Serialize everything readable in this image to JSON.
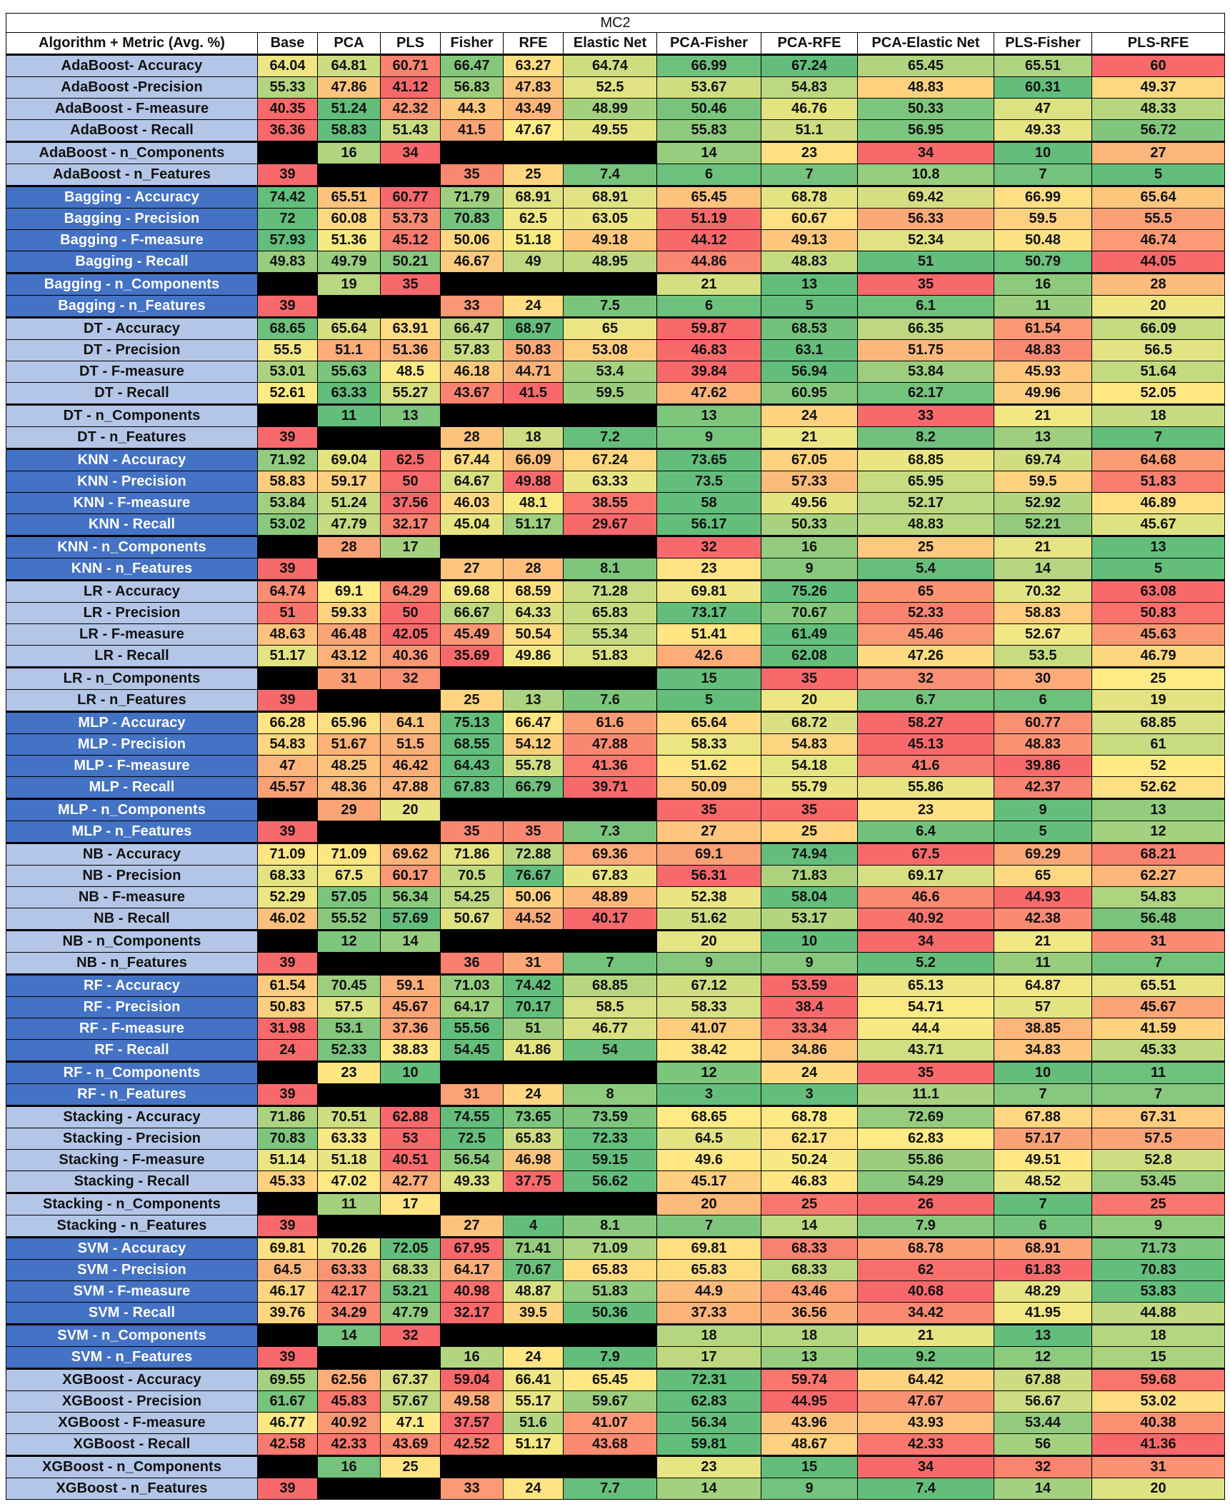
{
  "chart_data": {
    "type": "table",
    "title": "MC2",
    "corner_header": "Algorithm + Metric (Avg. %)",
    "columns": [
      "Base",
      "PCA",
      "PLS",
      "Fisher",
      "RFE",
      "Elastic Net",
      "PCA-Fisher",
      "PCA-RFE",
      "PCA-Elastic Net",
      "PLS-Fisher",
      "PLS-RFE"
    ],
    "colors": {
      "red": "#f8696b",
      "yellow": "#ffeb84",
      "green": "#63be7b",
      "empty": "#000000",
      "label_light": "#b4c6e7",
      "label_dark": "#4472c4"
    },
    "rows": [
      {
        "label": "AdaBoost- Accuracy",
        "values": [
          64.04,
          64.81,
          60.71,
          66.47,
          63.27,
          64.74,
          66.99,
          67.24,
          65.45,
          65.51,
          60
        ]
      },
      {
        "label": "AdaBoost -Precision",
        "values": [
          55.33,
          47.86,
          41.12,
          56.83,
          47.83,
          52.5,
          53.67,
          54.83,
          48.83,
          60.31,
          49.37
        ]
      },
      {
        "label": "AdaBoost - F-measure",
        "values": [
          40.35,
          51.24,
          42.32,
          44.3,
          43.49,
          48.99,
          50.46,
          46.76,
          50.33,
          47,
          48.33
        ]
      },
      {
        "label": "AdaBoost - Recall",
        "values": [
          36.36,
          58.83,
          51.43,
          41.5,
          47.67,
          49.55,
          55.83,
          51.1,
          56.95,
          49.33,
          56.72
        ]
      },
      {
        "label": "AdaBoost - n_Components",
        "values": [
          null,
          16,
          34,
          null,
          null,
          null,
          14,
          23,
          34,
          10,
          27
        ]
      },
      {
        "label": "AdaBoost - n_Features",
        "values": [
          39,
          null,
          null,
          35,
          25,
          7.4,
          6,
          7,
          10.8,
          7,
          5
        ]
      },
      {
        "label": "Bagging - Accuracy",
        "values": [
          74.42,
          65.51,
          60.77,
          71.79,
          68.91,
          68.91,
          65.45,
          68.78,
          69.42,
          66.99,
          65.64
        ]
      },
      {
        "label": "Bagging - Precision",
        "values": [
          72,
          60.08,
          53.73,
          70.83,
          62.5,
          63.05,
          51.19,
          60.67,
          56.33,
          59.5,
          55.5
        ]
      },
      {
        "label": "Bagging - F-measure",
        "values": [
          57.93,
          51.36,
          45.12,
          50.06,
          51.18,
          49.18,
          44.12,
          49.13,
          52.34,
          50.48,
          46.74
        ]
      },
      {
        "label": "Bagging - Recall",
        "values": [
          49.83,
          49.79,
          50.21,
          46.67,
          49,
          48.95,
          44.86,
          48.83,
          51,
          50.79,
          44.05
        ]
      },
      {
        "label": "Bagging - n_Components",
        "values": [
          null,
          19,
          35,
          null,
          null,
          null,
          21,
          13,
          35,
          16,
          28
        ]
      },
      {
        "label": "Bagging - n_Features",
        "values": [
          39,
          null,
          null,
          33,
          24,
          7.5,
          6,
          5,
          6.1,
          11,
          20
        ]
      },
      {
        "label": "DT - Accuracy",
        "values": [
          68.65,
          65.64,
          63.91,
          66.47,
          68.97,
          65,
          59.87,
          68.53,
          66.35,
          61.54,
          66.09
        ]
      },
      {
        "label": "DT - Precision",
        "values": [
          55.5,
          51.1,
          51.36,
          57.83,
          50.83,
          53.08,
          46.83,
          63.1,
          51.75,
          48.83,
          56.5
        ]
      },
      {
        "label": "DT - F-measure",
        "values": [
          53.01,
          55.63,
          48.5,
          46.18,
          44.71,
          53.4,
          39.84,
          56.94,
          53.84,
          45.93,
          51.64
        ]
      },
      {
        "label": "DT - Recall",
        "values": [
          52.61,
          63.33,
          55.27,
          43.67,
          41.5,
          59.5,
          47.62,
          60.95,
          62.17,
          49.96,
          52.05
        ]
      },
      {
        "label": "DT - n_Components",
        "values": [
          null,
          11,
          13,
          null,
          null,
          null,
          13,
          24,
          33,
          21,
          18
        ]
      },
      {
        "label": "DT - n_Features",
        "values": [
          39,
          null,
          null,
          28,
          18,
          7.2,
          9,
          21,
          8.2,
          13,
          7
        ]
      },
      {
        "label": "KNN - Accuracy",
        "values": [
          71.92,
          69.04,
          62.5,
          67.44,
          66.09,
          67.24,
          73.65,
          67.05,
          68.85,
          69.74,
          64.68
        ]
      },
      {
        "label": "KNN - Precision",
        "values": [
          58.83,
          59.17,
          50,
          64.67,
          49.88,
          63.33,
          73.5,
          57.33,
          65.95,
          59.5,
          51.83
        ]
      },
      {
        "label": "KNN - F-measure",
        "values": [
          53.84,
          51.24,
          37.56,
          46.03,
          48.1,
          38.55,
          58,
          49.56,
          52.17,
          52.92,
          46.89
        ]
      },
      {
        "label": "KNN - Recall",
        "values": [
          53.02,
          47.79,
          32.17,
          45.04,
          51.17,
          29.67,
          56.17,
          50.33,
          48.83,
          52.21,
          45.67
        ]
      },
      {
        "label": "KNN - n_Components",
        "values": [
          null,
          28,
          17,
          null,
          null,
          null,
          32,
          16,
          25,
          21,
          13
        ]
      },
      {
        "label": "KNN - n_Features",
        "values": [
          39,
          null,
          null,
          27,
          28,
          8.1,
          23,
          9,
          5.4,
          14,
          5
        ]
      },
      {
        "label": "LR - Accuracy",
        "values": [
          64.74,
          69.1,
          64.29,
          69.68,
          68.59,
          71.28,
          69.81,
          75.26,
          65,
          70.32,
          63.08
        ]
      },
      {
        "label": "LR - Precision",
        "values": [
          51,
          59.33,
          50,
          66.67,
          64.33,
          65.83,
          73.17,
          70.67,
          52.33,
          58.83,
          50.83
        ]
      },
      {
        "label": "LR - F-measure",
        "values": [
          48.63,
          46.48,
          42.05,
          45.49,
          50.54,
          55.34,
          51.41,
          61.49,
          45.46,
          52.67,
          45.63
        ]
      },
      {
        "label": "LR - Recall",
        "values": [
          51.17,
          43.12,
          40.36,
          35.69,
          49.86,
          51.83,
          42.6,
          62.08,
          47.26,
          53.5,
          46.79
        ]
      },
      {
        "label": "LR - n_Components",
        "values": [
          null,
          31,
          32,
          null,
          null,
          null,
          15,
          35,
          32,
          30,
          25
        ]
      },
      {
        "label": "LR - n_Features",
        "values": [
          39,
          null,
          null,
          25,
          13,
          7.6,
          5,
          20,
          6.7,
          6,
          19
        ]
      },
      {
        "label": "MLP - Accuracy",
        "values": [
          66.28,
          65.96,
          64.1,
          75.13,
          66.47,
          61.6,
          65.64,
          68.72,
          58.27,
          60.77,
          68.85
        ]
      },
      {
        "label": "MLP -  Precision",
        "values": [
          54.83,
          51.67,
          51.5,
          68.55,
          54.12,
          47.88,
          58.33,
          54.83,
          45.13,
          48.83,
          61
        ]
      },
      {
        "label": "MLP -  F-measure",
        "values": [
          47,
          48.25,
          46.42,
          64.43,
          55.78,
          41.36,
          51.62,
          54.18,
          41.6,
          39.86,
          52
        ]
      },
      {
        "label": "MLP -  Recall",
        "values": [
          45.57,
          48.36,
          47.88,
          67.83,
          66.79,
          39.71,
          50.09,
          55.79,
          55.86,
          42.37,
          52.62
        ]
      },
      {
        "label": "MLP - n_Components",
        "values": [
          null,
          29,
          20,
          null,
          null,
          null,
          35,
          35,
          23,
          9,
          13
        ]
      },
      {
        "label": "MLP - n_Features",
        "values": [
          39,
          null,
          null,
          35,
          35,
          7.3,
          27,
          25,
          6.4,
          5,
          12
        ]
      },
      {
        "label": "NB - Accuracy",
        "values": [
          71.09,
          71.09,
          69.62,
          71.86,
          72.88,
          69.36,
          69.1,
          74.94,
          67.5,
          69.29,
          68.21
        ]
      },
      {
        "label": "NB - Precision",
        "values": [
          68.33,
          67.5,
          60.17,
          70.5,
          76.67,
          67.83,
          56.31,
          71.83,
          69.17,
          65,
          62.27
        ]
      },
      {
        "label": "NB - F-measure",
        "values": [
          52.29,
          57.05,
          56.34,
          54.25,
          50.06,
          48.89,
          52.38,
          58.04,
          46.6,
          44.93,
          54.83
        ]
      },
      {
        "label": "NB - Recall",
        "values": [
          46.02,
          55.52,
          57.69,
          50.67,
          44.52,
          40.17,
          51.62,
          53.17,
          40.92,
          42.38,
          56.48
        ]
      },
      {
        "label": "NB - n_Components",
        "values": [
          null,
          12,
          14,
          null,
          null,
          null,
          20,
          10,
          34,
          21,
          31
        ]
      },
      {
        "label": "NB - n_Features",
        "values": [
          39,
          null,
          null,
          36,
          31,
          7,
          9,
          9,
          5.2,
          11,
          7
        ]
      },
      {
        "label": "RF - Accuracy",
        "values": [
          61.54,
          70.45,
          59.1,
          71.03,
          74.42,
          68.85,
          67.12,
          53.59,
          65.13,
          64.87,
          65.51
        ]
      },
      {
        "label": "RF - Precision",
        "values": [
          50.83,
          57.5,
          45.67,
          64.17,
          70.17,
          58.5,
          58.33,
          38.4,
          54.71,
          57,
          45.67
        ]
      },
      {
        "label": "RF - F-measure",
        "values": [
          31.98,
          53.1,
          37.36,
          55.56,
          51,
          46.77,
          41.07,
          33.34,
          44.4,
          38.85,
          41.59
        ]
      },
      {
        "label": "RF - Recall",
        "values": [
          24,
          52.33,
          38.83,
          54.45,
          41.86,
          54,
          38.42,
          34.86,
          43.71,
          34.83,
          45.33
        ]
      },
      {
        "label": "RF - n_Components",
        "values": [
          null,
          23,
          10,
          null,
          null,
          null,
          12,
          24,
          35,
          10,
          11
        ]
      },
      {
        "label": "RF - n_Features",
        "values": [
          39,
          null,
          null,
          31,
          24,
          8,
          3,
          3,
          11.1,
          7,
          7
        ]
      },
      {
        "label": "Stacking - Accuracy",
        "values": [
          71.86,
          70.51,
          62.88,
          74.55,
          73.65,
          73.59,
          68.65,
          68.78,
          72.69,
          67.88,
          67.31
        ]
      },
      {
        "label": "Stacking - Precision",
        "values": [
          70.83,
          63.33,
          53,
          72.5,
          65.83,
          72.33,
          64.5,
          62.17,
          62.83,
          57.17,
          57.5
        ]
      },
      {
        "label": "Stacking - F-measure",
        "values": [
          51.14,
          51.18,
          40.51,
          56.54,
          46.98,
          59.15,
          49.6,
          50.24,
          55.86,
          49.51,
          52.8
        ]
      },
      {
        "label": "Stacking - Recall",
        "values": [
          45.33,
          47.02,
          42.77,
          49.33,
          37.75,
          56.62,
          45.17,
          46.83,
          54.29,
          48.52,
          53.45
        ]
      },
      {
        "label": "Stacking - n_Components",
        "values": [
          null,
          11,
          17,
          null,
          null,
          null,
          20,
          25,
          26,
          7,
          25
        ]
      },
      {
        "label": "Stacking - n_Features",
        "values": [
          39,
          null,
          null,
          27,
          4,
          8.1,
          7,
          14,
          7.9,
          6,
          9
        ]
      },
      {
        "label": "SVM - Accuracy",
        "values": [
          69.81,
          70.26,
          72.05,
          67.95,
          71.41,
          71.09,
          69.81,
          68.33,
          68.78,
          68.91,
          71.73
        ]
      },
      {
        "label": "SVM - Precision",
        "values": [
          64.5,
          63.33,
          68.33,
          64.17,
          70.67,
          65.83,
          65.83,
          68.33,
          62,
          61.83,
          70.83
        ]
      },
      {
        "label": "SVM - F-measure",
        "values": [
          46.17,
          42.17,
          53.21,
          40.98,
          48.87,
          51.83,
          44.9,
          43.46,
          40.68,
          48.29,
          53.83
        ]
      },
      {
        "label": "SVM - Recall",
        "values": [
          39.76,
          34.29,
          47.79,
          32.17,
          39.5,
          50.36,
          37.33,
          36.56,
          34.42,
          41.95,
          44.88
        ]
      },
      {
        "label": "SVM - n_Components",
        "values": [
          null,
          14,
          32,
          null,
          null,
          null,
          18,
          18,
          21,
          13,
          18
        ]
      },
      {
        "label": "SVM - n_Features",
        "values": [
          39,
          null,
          null,
          16,
          24,
          7.9,
          17,
          13,
          9.2,
          12,
          15
        ]
      },
      {
        "label": "XGBoost - Accuracy",
        "values": [
          69.55,
          62.56,
          67.37,
          59.04,
          66.41,
          65.45,
          72.31,
          59.74,
          64.42,
          67.88,
          59.68
        ]
      },
      {
        "label": "XGBoost - Precision",
        "values": [
          61.67,
          45.83,
          57.67,
          49.58,
          55.17,
          59.67,
          62.83,
          44.95,
          47.67,
          56.67,
          53.02
        ]
      },
      {
        "label": "XGBoost - F-measure",
        "values": [
          46.77,
          40.92,
          47.1,
          37.57,
          51.6,
          41.07,
          56.34,
          43.96,
          43.93,
          53.44,
          40.38
        ]
      },
      {
        "label": "XGBoost - Recall",
        "values": [
          42.58,
          42.33,
          43.69,
          42.52,
          51.17,
          43.68,
          59.81,
          48.67,
          42.33,
          56,
          41.36
        ]
      },
      {
        "label": "XGBoost - n_Components",
        "values": [
          null,
          16,
          25,
          null,
          null,
          null,
          23,
          15,
          34,
          32,
          31
        ]
      },
      {
        "label": "XGBoost - n_Features",
        "values": [
          39,
          null,
          null,
          33,
          24,
          7.7,
          14,
          9,
          7.4,
          14,
          20
        ]
      }
    ]
  }
}
